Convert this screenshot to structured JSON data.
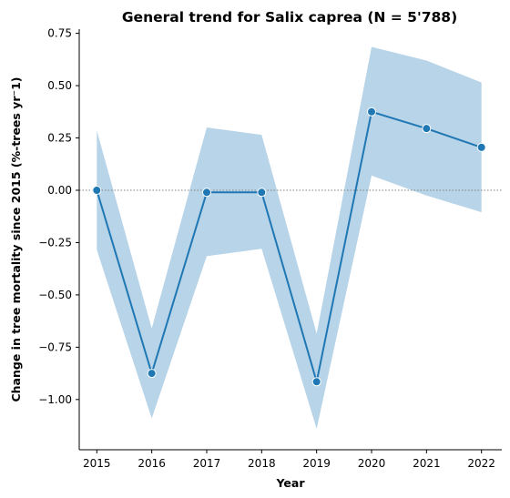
{
  "chart_data": {
    "type": "line",
    "title": "General trend for Salix caprea  (N = 5'788)",
    "xlabel": "Year",
    "ylabel": "Change in tree mortality since 2015 (%-trees yr⁻1)",
    "x": [
      2015,
      2016,
      2017,
      2018,
      2019,
      2020,
      2021,
      2022
    ],
    "x_tick_labels": [
      "2015",
      "2016",
      "2017",
      "2018",
      "2019",
      "2020",
      "2021",
      "2022"
    ],
    "y_ticks": [
      0.75,
      0.5,
      0.25,
      0.0,
      -0.25,
      -0.5,
      -0.75,
      -1.0
    ],
    "y_tick_labels": [
      "0.75",
      "0.50",
      "0.25",
      "0.00",
      "−0.25",
      "−0.50",
      "−0.75",
      "−1.00"
    ],
    "xlim": [
      2014.68,
      2022.37
    ],
    "ylim": [
      -1.24,
      0.77
    ],
    "series": [
      {
        "values": [
          0.0,
          -0.875,
          -0.01,
          -0.01,
          -0.915,
          0.375,
          0.295,
          0.205
        ],
        "ci_lower": [
          -0.285,
          -1.09,
          -0.315,
          -0.28,
          -1.14,
          0.07,
          -0.025,
          -0.105
        ],
        "ci_upper": [
          0.285,
          -0.66,
          0.3,
          0.265,
          -0.685,
          0.685,
          0.62,
          0.515
        ]
      }
    ],
    "reference_line": 0,
    "grid": false,
    "colors": {
      "line": "#1f77b4",
      "band": "#b8d4e8",
      "reference": "#808080"
    }
  }
}
